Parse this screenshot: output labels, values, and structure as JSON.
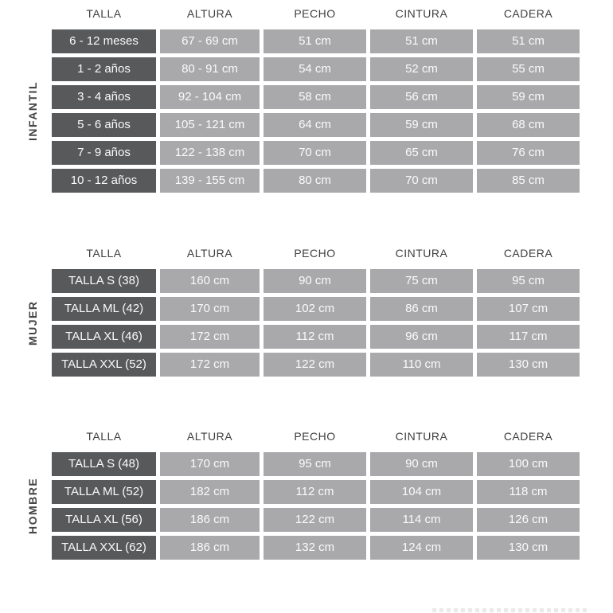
{
  "colors": {
    "label_cell_bg": "#58595b",
    "data_cell_bg": "#a9a9ab",
    "cell_text": "#fafafa",
    "header_text": "#3f3f41",
    "side_label_text": "#454547",
    "background": "#ffffff"
  },
  "columns": [
    "TALLA",
    "ALTURA",
    "PECHO",
    "CINTURA",
    "CADERA"
  ],
  "tables": [
    {
      "group_label": "INFANTIL",
      "rows": [
        [
          "6 - 12 meses",
          "67 - 69 cm",
          "51 cm",
          "51 cm",
          "51 cm"
        ],
        [
          "1 - 2 años",
          "80 - 91 cm",
          "54 cm",
          "52 cm",
          "55 cm"
        ],
        [
          "3 - 4 años",
          "92 - 104 cm",
          "58 cm",
          "56 cm",
          "59 cm"
        ],
        [
          "5 - 6 años",
          "105 - 121 cm",
          "64 cm",
          "59 cm",
          "68 cm"
        ],
        [
          "7 - 9 años",
          "122 - 138 cm",
          "70 cm",
          "65 cm",
          "76 cm"
        ],
        [
          "10 - 12 años",
          "139 - 155 cm",
          "80 cm",
          "70 cm",
          "85 cm"
        ]
      ]
    },
    {
      "group_label": "MUJER",
      "rows": [
        [
          "TALLA S (38)",
          "160 cm",
          "90 cm",
          "75 cm",
          "95 cm"
        ],
        [
          "TALLA ML (42)",
          "170 cm",
          "102 cm",
          "86 cm",
          "107 cm"
        ],
        [
          "TALLA XL (46)",
          "172 cm",
          "112 cm",
          "96 cm",
          "117 cm"
        ],
        [
          "TALLA XXL (52)",
          "172 cm",
          "122 cm",
          "110 cm",
          "130 cm"
        ]
      ]
    },
    {
      "group_label": "HOMBRE",
      "rows": [
        [
          "TALLA S (48)",
          "170 cm",
          "95 cm",
          "90 cm",
          "100 cm"
        ],
        [
          "TALLA ML (52)",
          "182 cm",
          "112 cm",
          "104 cm",
          "118 cm"
        ],
        [
          "TALLA XL (56)",
          "186 cm",
          "122 cm",
          "114 cm",
          "126 cm"
        ],
        [
          "TALLA XXL (62)",
          "186 cm",
          "132 cm",
          "124 cm",
          "130 cm"
        ]
      ]
    }
  ]
}
